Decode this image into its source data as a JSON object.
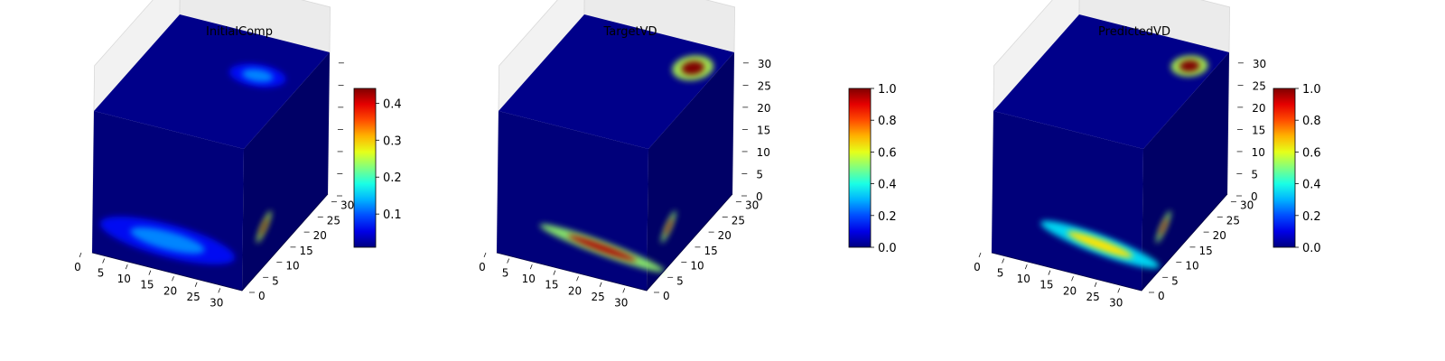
{
  "chart_data": [
    {
      "type": "3d-voxel",
      "title": "InitialComp",
      "axes": {
        "x_ticks": [
          "0",
          "5",
          "10",
          "15",
          "20",
          "25",
          "30"
        ],
        "y_ticks": [
          "0",
          "5",
          "10",
          "15",
          "20",
          "25",
          "30"
        ],
        "z_ticks": [],
        "xlim": [
          0,
          32
        ],
        "ylim": [
          0,
          32
        ],
        "zlim": [
          0,
          32
        ]
      },
      "colorbar": {
        "min": 0.01,
        "max": 0.44,
        "ticks": [
          "0.1",
          "0.2",
          "0.3",
          "0.4"
        ],
        "tick_values": [
          0.1,
          0.2,
          0.3,
          0.4
        ]
      },
      "features": [
        {
          "face": "top",
          "u": 0.72,
          "v": 0.65,
          "ru": 0.18,
          "rv": 0.1,
          "value": 0.12
        },
        {
          "face": "front",
          "u": 0.5,
          "v": 0.22,
          "ru": 0.45,
          "rv": 0.12,
          "value": 0.12
        },
        {
          "face": "right",
          "u": 0.25,
          "v": 0.28,
          "ru": 0.1,
          "rv": 0.04,
          "value": 0.44,
          "angle": 0.6
        }
      ]
    },
    {
      "type": "3d-voxel",
      "title": "TargetVD",
      "axes": {
        "x_ticks": [
          "0",
          "5",
          "10",
          "15",
          "20",
          "25",
          "30"
        ],
        "y_ticks": [
          "0",
          "5",
          "10",
          "15",
          "20",
          "25",
          "30"
        ],
        "z_ticks": [
          "0",
          "5",
          "10",
          "15",
          "20",
          "25",
          "30"
        ],
        "xlim": [
          0,
          32
        ],
        "ylim": [
          0,
          32
        ],
        "zlim": [
          0,
          32
        ]
      },
      "colorbar": {
        "min": 0.0,
        "max": 1.0,
        "ticks": [
          "0.0",
          "0.2",
          "0.4",
          "0.6",
          "0.8",
          "1.0"
        ],
        "tick_values": [
          0.0,
          0.2,
          0.4,
          0.6,
          0.8,
          1.0
        ]
      },
      "features": [
        {
          "face": "top",
          "u": 0.85,
          "v": 0.78,
          "ru": 0.12,
          "rv": 0.12,
          "value": 1.0
        },
        {
          "face": "front",
          "u": 0.7,
          "v": 0.22,
          "ru": 0.42,
          "rv": 0.05,
          "value": 0.95,
          "angle": -0.12
        },
        {
          "face": "right",
          "u": 0.25,
          "v": 0.28,
          "ru": 0.1,
          "rv": 0.04,
          "value": 0.95,
          "angle": 0.6
        }
      ]
    },
    {
      "type": "3d-voxel",
      "title": "PredictedVD",
      "axes": {
        "x_ticks": [
          "0",
          "5",
          "10",
          "15",
          "20",
          "25",
          "30"
        ],
        "y_ticks": [
          "0",
          "5",
          "10",
          "15",
          "20",
          "25",
          "30"
        ],
        "z_ticks": [
          "0",
          "5",
          "10",
          "15",
          "20",
          "25",
          "30"
        ],
        "xlim": [
          0,
          32
        ],
        "ylim": [
          0,
          32
        ],
        "zlim": [
          0,
          32
        ]
      },
      "colorbar": {
        "min": 0.0,
        "max": 1.0,
        "ticks": [
          "0.0",
          "0.2",
          "0.4",
          "0.6",
          "0.8",
          "1.0"
        ],
        "tick_values": [
          0.0,
          0.2,
          0.4,
          0.6,
          0.8,
          1.0
        ]
      },
      "features": [
        {
          "face": "top",
          "u": 0.85,
          "v": 0.8,
          "ru": 0.11,
          "rv": 0.1,
          "value": 1.0
        },
        {
          "face": "front",
          "u": 0.72,
          "v": 0.25,
          "ru": 0.4,
          "rv": 0.07,
          "value": 0.65,
          "angle": -0.12
        },
        {
          "face": "right",
          "u": 0.25,
          "v": 0.28,
          "ru": 0.1,
          "rv": 0.04,
          "value": 0.95,
          "angle": 0.6
        }
      ]
    }
  ]
}
